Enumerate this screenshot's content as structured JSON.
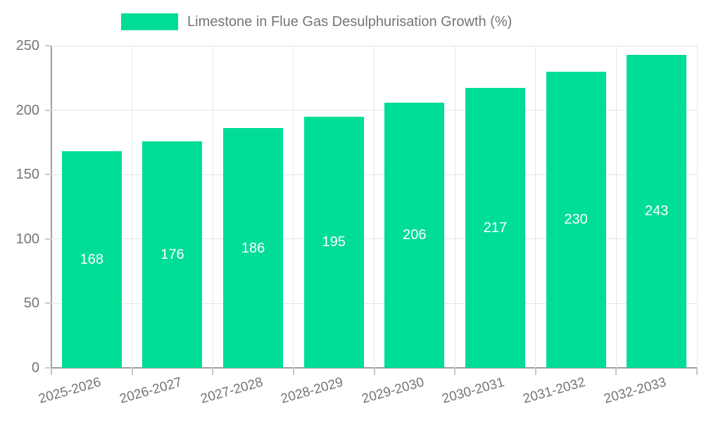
{
  "legend": {
    "label": "Limestone in Flue Gas Desulphurisation Growth (%)",
    "swatch_color": "#00DD96"
  },
  "chart_data": {
    "type": "bar",
    "title": "Limestone in Flue Gas Desulphurisation Growth (%)",
    "categories": [
      "2025-2026",
      "2026-2027",
      "2027-2028",
      "2028-2029",
      "2029-2030",
      "2030-2031",
      "2031-2032",
      "2032-2033"
    ],
    "values": [
      168,
      176,
      186,
      195,
      206,
      217,
      230,
      243
    ],
    "value_labels": [
      "168",
      "176",
      "186",
      "195",
      "206",
      "217",
      "230",
      "243"
    ],
    "xlabel": "",
    "ylabel": "",
    "ylim": [
      0,
      250
    ],
    "yticks": [
      0,
      50,
      100,
      150,
      200,
      250
    ],
    "grid": true,
    "legend_position": "top",
    "bar_color": "#00DD96",
    "value_label_color": "#ffffff"
  },
  "colors": {
    "background": "#ffffff",
    "axis": "#9e9e9e",
    "gridline": "#e6e6e6",
    "tick": "#c6c6c6",
    "tick_text": "#757575",
    "legend_text": "#757575"
  }
}
